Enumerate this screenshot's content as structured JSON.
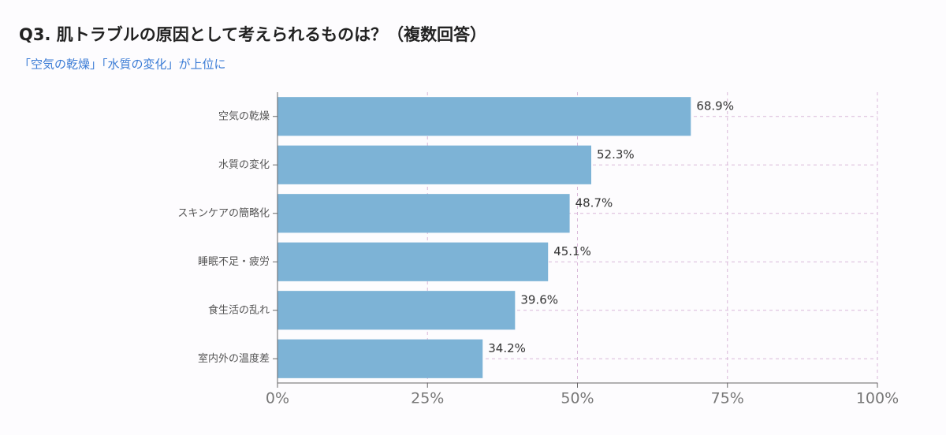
{
  "chart_data": {
    "type": "bar",
    "orientation": "horizontal",
    "title": "Q3. 肌トラブルの原因として考えられるものは？（複数回答）",
    "subtitle": "「空気の乾燥」「水質の変化」が上位に",
    "categories": [
      "空気の乾燥",
      "水質の変化",
      "スキンケアの簡略化",
      "睡眠不足・疲労",
      "食生活の乱れ",
      "室内外の温度差"
    ],
    "values": [
      68.9,
      52.3,
      48.7,
      45.1,
      39.6,
      34.2
    ],
    "value_labels": [
      "68.9%",
      "52.3%",
      "48.7%",
      "45.1%",
      "39.6%",
      "34.2%"
    ],
    "color": "#7db3d6",
    "xlim": [
      0,
      100
    ],
    "xticks": [
      {
        "value": 0,
        "label": "0%"
      },
      {
        "value": 25,
        "label": "25%"
      },
      {
        "value": 50,
        "label": "50%"
      },
      {
        "value": 75,
        "label": "75%"
      },
      {
        "value": 100,
        "label": "100%"
      }
    ],
    "grid": true
  }
}
